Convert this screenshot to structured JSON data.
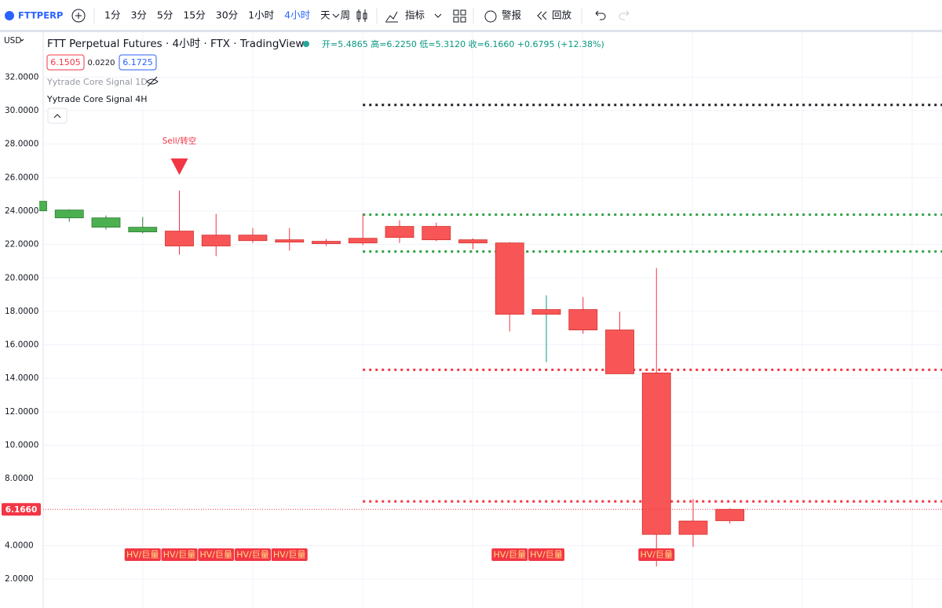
{
  "toolbar": {
    "symbol": "FTTPERP",
    "intervals": [
      "1分",
      "3分",
      "5分",
      "15分",
      "30分",
      "1小时",
      "4小时",
      "天",
      "周"
    ],
    "indicators": "指标",
    "alerts": "警报",
    "replay": "回放"
  },
  "header": {
    "title": "FTT Perpetual Futures · 4小时 · FTX · TradingView",
    "ohlc": "开=5.4865 高=6.2250 低=5.3120 收=6.1660 +0.6795 (+12.38%)",
    "bid": "6.1505",
    "spread": "0.0220",
    "ask": "6.1725",
    "studies": [
      "Yytrade Core Signal 1D",
      "Yytrade Core Signal 4H"
    ]
  },
  "chart_data": {
    "type": "candlestick",
    "currency": "USD",
    "open": [
      24.01,
      23.59,
      23.03,
      22.75,
      22.8,
      22.56,
      22.56,
      22.28,
      22.19,
      22.37,
      23.08,
      23.08,
      22.28,
      22.09,
      18.11,
      18.11,
      16.89,
      14.32,
      5.47,
      5.4865
    ],
    "high": [
      24.6,
      24.1,
      23.73,
      23.64,
      25.23,
      23.83,
      22.98,
      22.98,
      22.33,
      23.83,
      23.45,
      23.31,
      22.37,
      22.14,
      18.96,
      18.86,
      17.97,
      20.59,
      6.78,
      6.225
    ],
    "low": [
      23.9,
      23.36,
      22.89,
      22.66,
      21.39,
      21.3,
      22.09,
      21.63,
      21.91,
      21.96,
      22.09,
      22.19,
      21.72,
      16.8,
      14.97,
      16.66,
      14.27,
      2.75,
      3.92,
      5.312
    ],
    "close": [
      24.58,
      24.06,
      23.59,
      23.03,
      21.91,
      21.91,
      22.23,
      22.14,
      22.05,
      22.09,
      22.42,
      22.28,
      22.09,
      17.83,
      17.83,
      16.89,
      14.27,
      4.67,
      4.67,
      6.166
    ],
    "colors": [
      "#4caf50",
      "#4caf50",
      "#4caf50",
      "#4caf50",
      "#f85656",
      "#f85656",
      "#f85656",
      "#f85656",
      "#f85656",
      "#f85656",
      "#f85656",
      "#f85656",
      "#f85656",
      "#f85656",
      "#f85656",
      "#f85656",
      "#f85656",
      "#f85656",
      "#f85656",
      "#f85656"
    ],
    "hv_labels": [
      null,
      null,
      null,
      "HV/巨量",
      "HV/巨量",
      "HV/巨量",
      "HV/巨量",
      "HV/巨量",
      null,
      null,
      null,
      null,
      null,
      "HV/巨量",
      "HV/巨量",
      null,
      null,
      "HV/巨量",
      null,
      null
    ],
    "signals": [
      null,
      null,
      null,
      null,
      "Sell/转空",
      null,
      null,
      null,
      null,
      null,
      null,
      null,
      null,
      null,
      null,
      null,
      null,
      null,
      null,
      null
    ],
    "levels": [
      {
        "value": 30.34,
        "color": "#222222"
      },
      {
        "value": 23.78,
        "color": "#2ea043"
      },
      {
        "value": 21.58,
        "color": "#2ea043"
      },
      {
        "value": 14.51,
        "color": "#f23645"
      },
      {
        "value": 6.64,
        "color": "#f23645"
      }
    ],
    "last_price": {
      "value": 6.166,
      "label": "6.1660"
    },
    "ylim": [
      0.27,
      34.69
    ],
    "yticks": [
      {
        "value": 2,
        "label": "2.0000"
      },
      {
        "value": 4,
        "label": "4.0000"
      },
      {
        "value": 8,
        "label": "8.0000"
      },
      {
        "value": 10,
        "label": "10.0000"
      },
      {
        "value": 12,
        "label": "12.0000"
      },
      {
        "value": 14,
        "label": "14.0000"
      },
      {
        "value": 16,
        "label": "16.0000"
      },
      {
        "value": 18,
        "label": "18.0000"
      },
      {
        "value": 20,
        "label": "20.0000"
      },
      {
        "value": 22,
        "label": "22.0000"
      },
      {
        "value": 24,
        "label": "24.0000"
      },
      {
        "value": 26,
        "label": "26.0000"
      },
      {
        "value": 28,
        "label": "28.0000"
      },
      {
        "value": 30,
        "label": "30.0000"
      },
      {
        "value": 32,
        "label": "32.0000"
      }
    ],
    "grid": true
  }
}
